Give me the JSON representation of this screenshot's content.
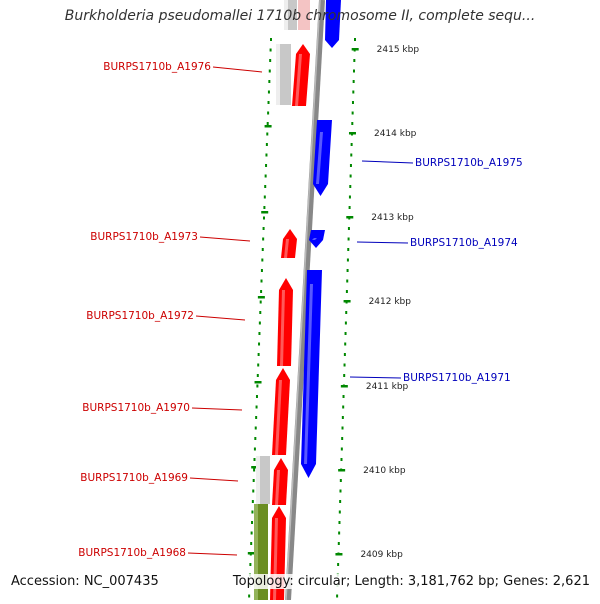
{
  "title": "Burkholderia pseudomallei 1710b chromosome II, complete sequ...",
  "accession": "Accession: NC_007435",
  "topology": "Topology: circular; Length: 3,181,762 bp; Genes: 2,621",
  "colors": {
    "forward": "#ff0000",
    "reverse": "#0000ff",
    "forward_label": "#cc0000",
    "reverse_label": "#0000bb",
    "axis": "#888888",
    "ticks": "#008800",
    "grey_feature": "#c8c8c8",
    "olive_feature": "#6b8e23"
  },
  "scale_labels": [
    "2415 kbp",
    "2414 kbp",
    "2413 kbp",
    "2412 kbp",
    "2411 kbp",
    "2410 kbp",
    "2409 kbp"
  ],
  "genes": [
    {
      "label": "BURPS1710b_A1976",
      "strand": "forward"
    },
    {
      "label": "BURPS1710b_A1975",
      "strand": "reverse"
    },
    {
      "label": "BURPS1710b_A1974",
      "strand": "reverse"
    },
    {
      "label": "BURPS1710b_A1973",
      "strand": "forward"
    },
    {
      "label": "BURPS1710b_A1972",
      "strand": "forward"
    },
    {
      "label": "BURPS1710b_A1971",
      "strand": "reverse"
    },
    {
      "label": "BURPS1710b_A1970",
      "strand": "forward"
    },
    {
      "label": "BURPS1710b_A1969",
      "strand": "forward"
    },
    {
      "label": "BURPS1710b_A1968",
      "strand": "forward"
    }
  ]
}
